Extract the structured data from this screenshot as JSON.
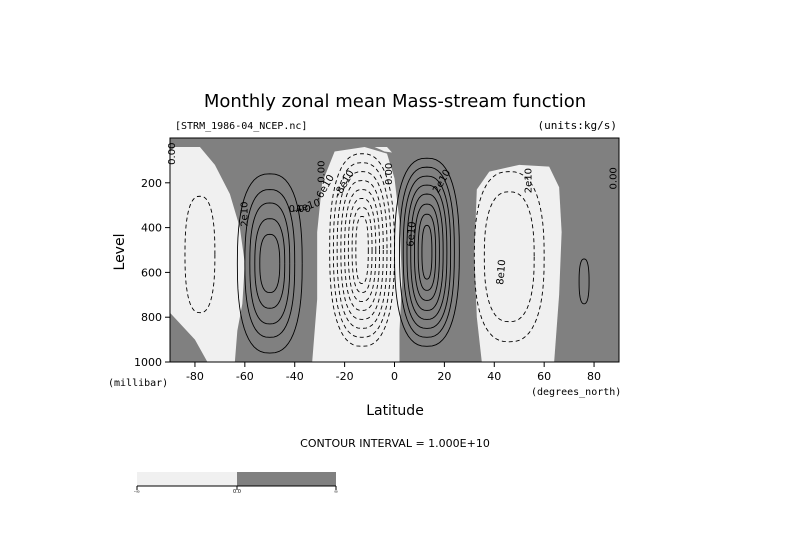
{
  "chart_data": {
    "type": "contour",
    "title": "Monthly zonal mean Mass-stream function",
    "file_label": "[STRM_1986-04_NCEP.nc]",
    "units_label": "(units:kg/s)",
    "xlabel": "Latitude",
    "x_units": "(degrees_north)",
    "ylabel": "Level",
    "y_units": "(millibar)",
    "x_ticks": [
      "-80",
      "-60",
      "-40",
      "-20",
      "0",
      "20",
      "40",
      "60",
      "80"
    ],
    "x_tick_values": [
      -80,
      -60,
      -40,
      -20,
      0,
      20,
      40,
      60,
      80
    ],
    "y_ticks": [
      "200",
      "400",
      "600",
      "800",
      "1000"
    ],
    "y_tick_values": [
      200,
      400,
      600,
      800,
      1000
    ],
    "xlim": [
      -90,
      90
    ],
    "ylim": [
      1000,
      0
    ],
    "y_inverted": true,
    "contour_interval": "CONTOUR INTERVAL = 1.000E+10",
    "contour_labels": [
      "0.00",
      "2e10",
      "-4e10",
      "-6e10",
      "-8e10",
      "6e10",
      "2e10",
      "8e10",
      "2e10",
      "0.00",
      "0.00",
      "0.00",
      "0.00"
    ],
    "shading": {
      "negative_color": "#f0f0f0",
      "positive_color": "#808080"
    },
    "colorbar": {
      "labels": [
        "-∞",
        "0.0",
        "∞"
      ]
    },
    "cells": [
      {
        "sign": "positive",
        "center_lat": -50,
        "center_level": 550,
        "peak": 30000000000.0
      },
      {
        "sign": "negative",
        "center_lat": -13,
        "center_level": 500,
        "peak": -90000000000.0
      },
      {
        "sign": "positive",
        "center_lat": 13,
        "center_level": 500,
        "peak": 80000000000.0
      },
      {
        "sign": "negative",
        "center_lat": 45,
        "center_level": 550,
        "peak": -20000000000.0
      }
    ]
  }
}
